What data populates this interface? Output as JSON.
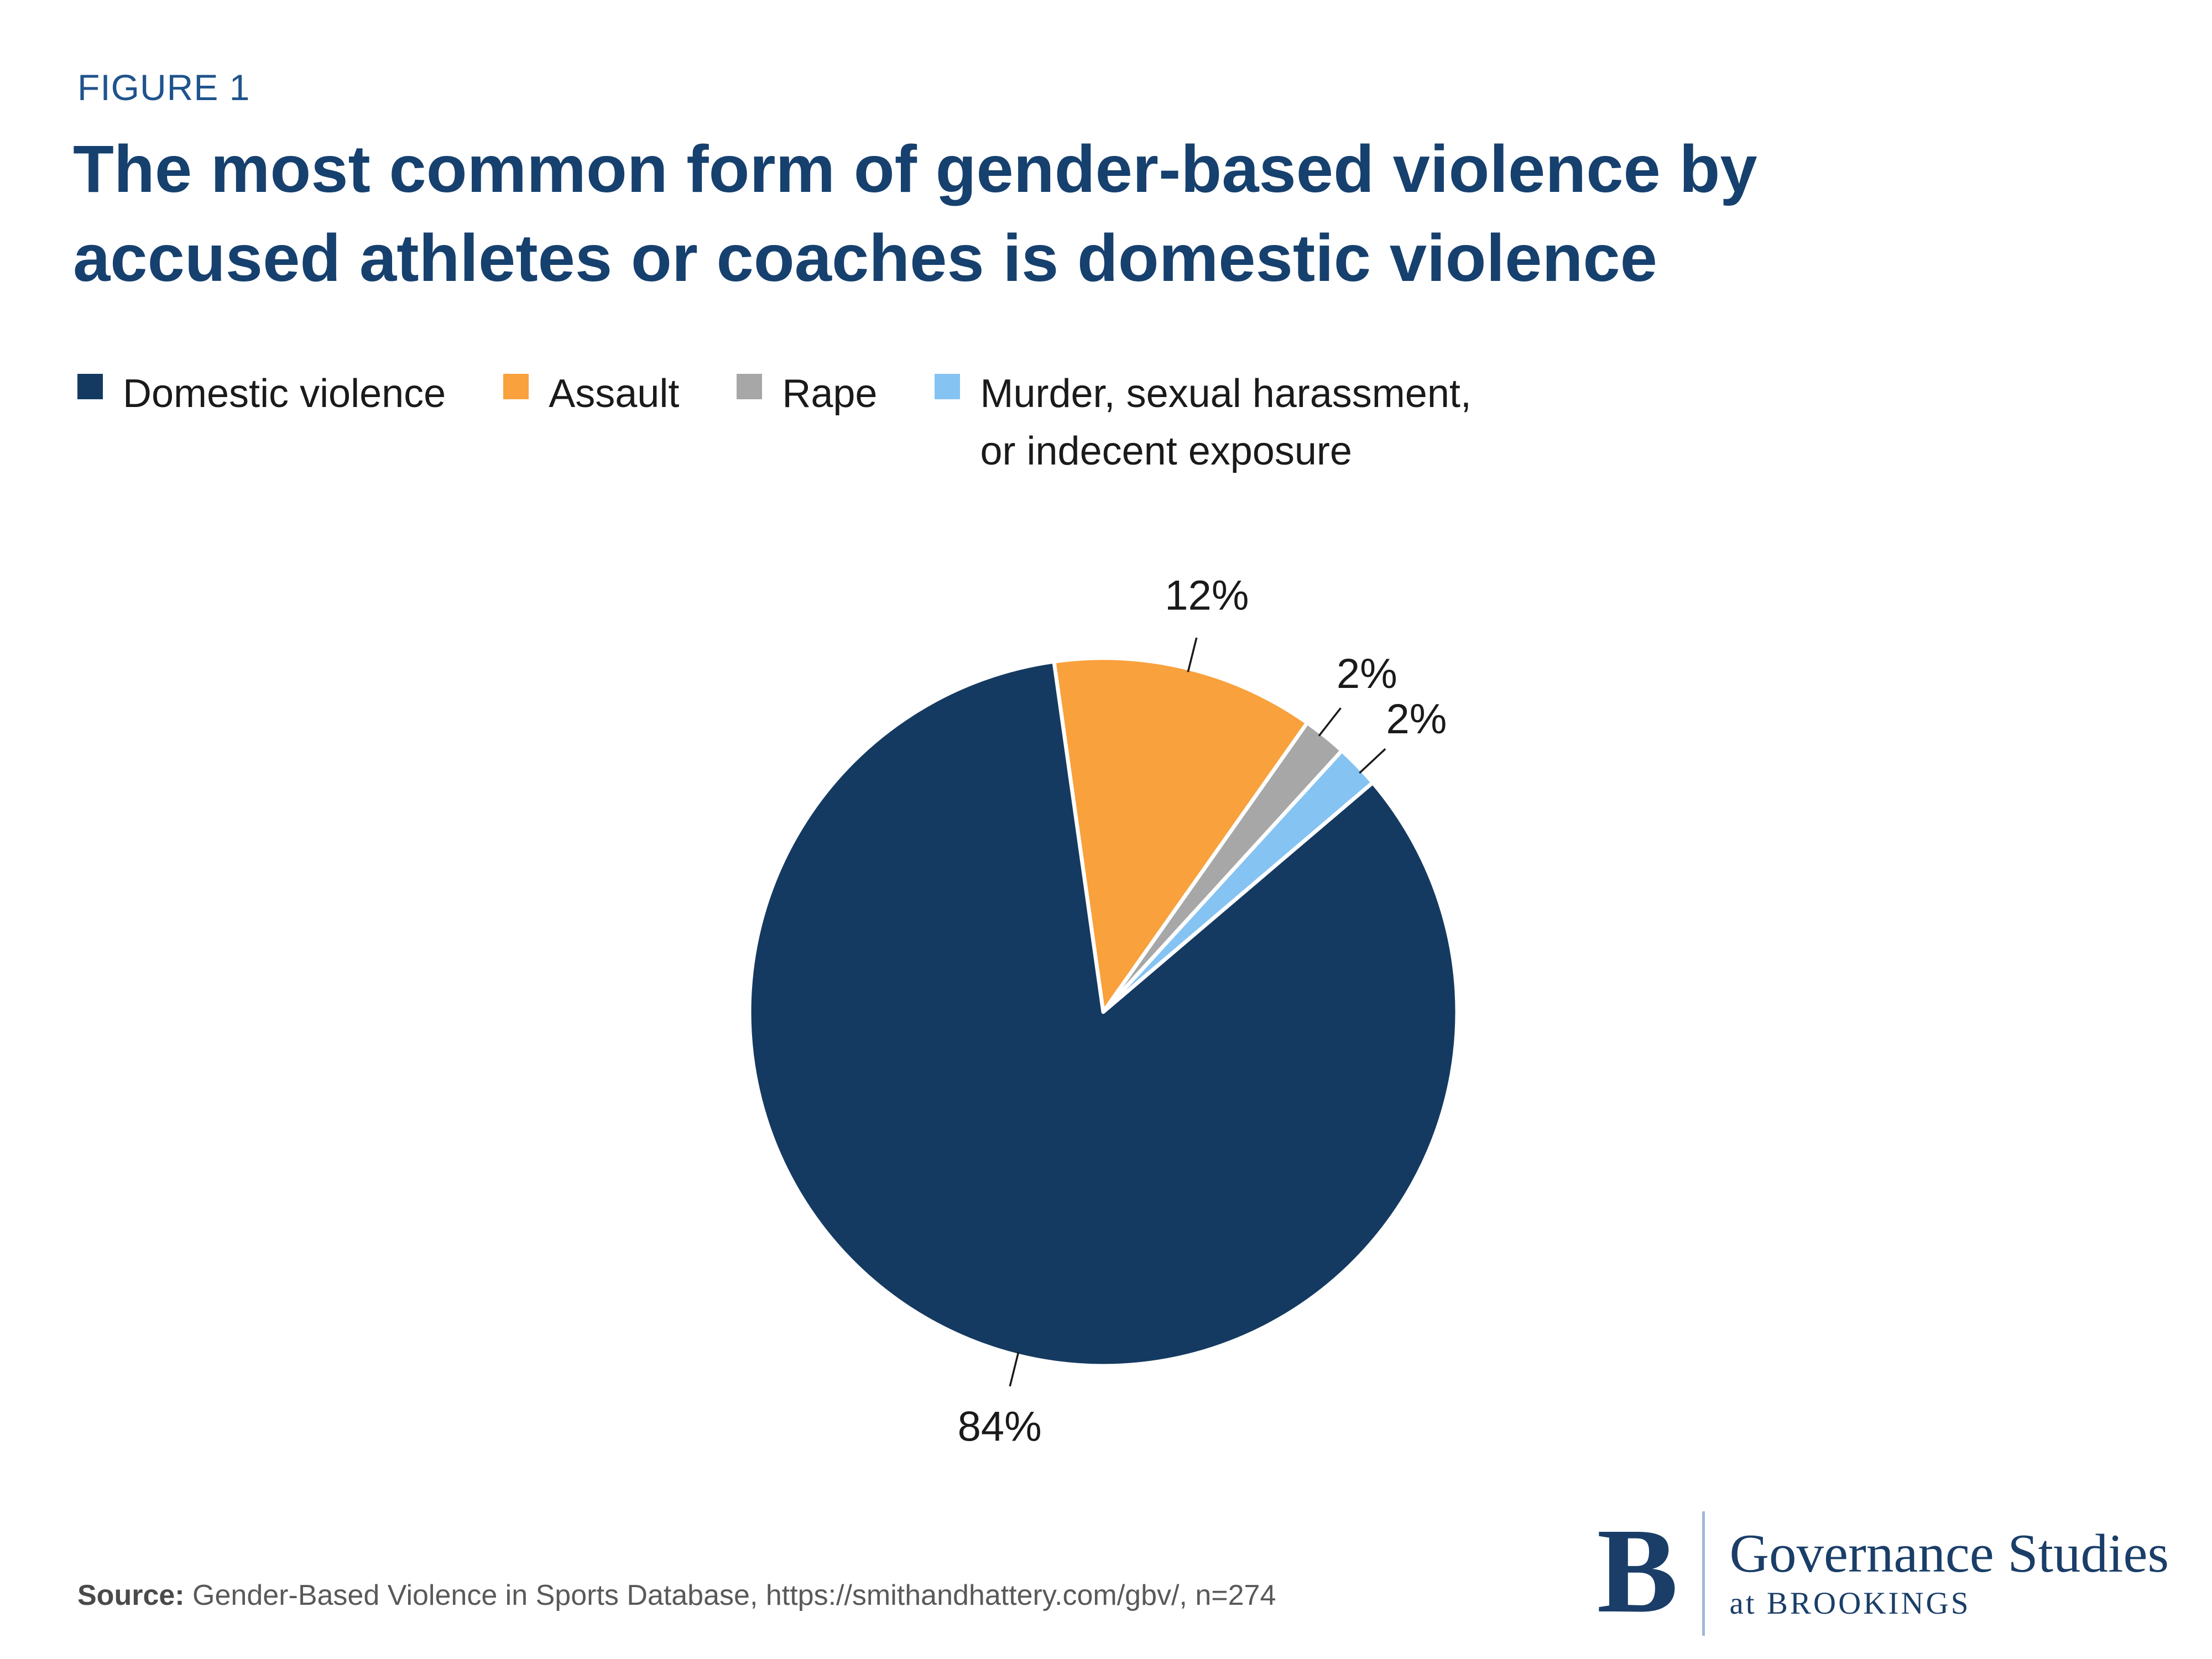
{
  "figure_label": "FIGURE 1",
  "title_lines": [
    "The most common form of gender-based violence by",
    "accused athletes or coaches is domestic violence"
  ],
  "legend": {
    "items": [
      {
        "label": "Domestic violence",
        "color": "#153A61"
      },
      {
        "label": "Assault",
        "color": "#F9A13C"
      },
      {
        "label": "Rape",
        "color": "#A7A7A7"
      },
      {
        "label": "Murder, sexual harassment,\nor indecent exposure",
        "color": "#85C3F2"
      }
    ]
  },
  "chart_data": {
    "type": "pie",
    "title": "The most common form of gender-based violence by accused athletes or coaches is domestic violence",
    "start_angle": -8,
    "legend_position": "top",
    "slices": [
      {
        "id": "assault",
        "name": "Assault",
        "value": 12,
        "pct_label": "12%",
        "color": "#F9A13C",
        "label_angle": 14
      },
      {
        "id": "rape",
        "name": "Rape",
        "value": 2,
        "pct_label": "2%",
        "color": "#A7A7A7",
        "label_angle": 38
      },
      {
        "id": "murder-sexual-harassment-indecent-exposure",
        "name": "Murder, sexual harassment, or indecent exposure",
        "value": 2,
        "pct_label": "2%",
        "color": "#85C3F2",
        "label_angle": 47
      },
      {
        "id": "domestic-violence",
        "name": "Domestic violence",
        "value": 84,
        "pct_label": "84%",
        "color": "#153A61",
        "label_angle": 194
      }
    ],
    "n": "n=274"
  },
  "source": {
    "prefix": "Source:",
    "text": " Gender-Based Violence in Sports Database, https://smithandhattery.com/gbv/, n=274"
  },
  "logo": {
    "letter": "B",
    "line1": "Governance Studies",
    "line2": "at BROOKINGS"
  },
  "colors": {
    "navy": "#153A61",
    "orange": "#F9A13C",
    "gray": "#A7A7A7",
    "light_blue": "#85C3F2",
    "title_navy": "#16406E",
    "figure_label_blue": "#1F538C",
    "logo_navy": "#1A3E68",
    "source_gray": "#595959"
  }
}
